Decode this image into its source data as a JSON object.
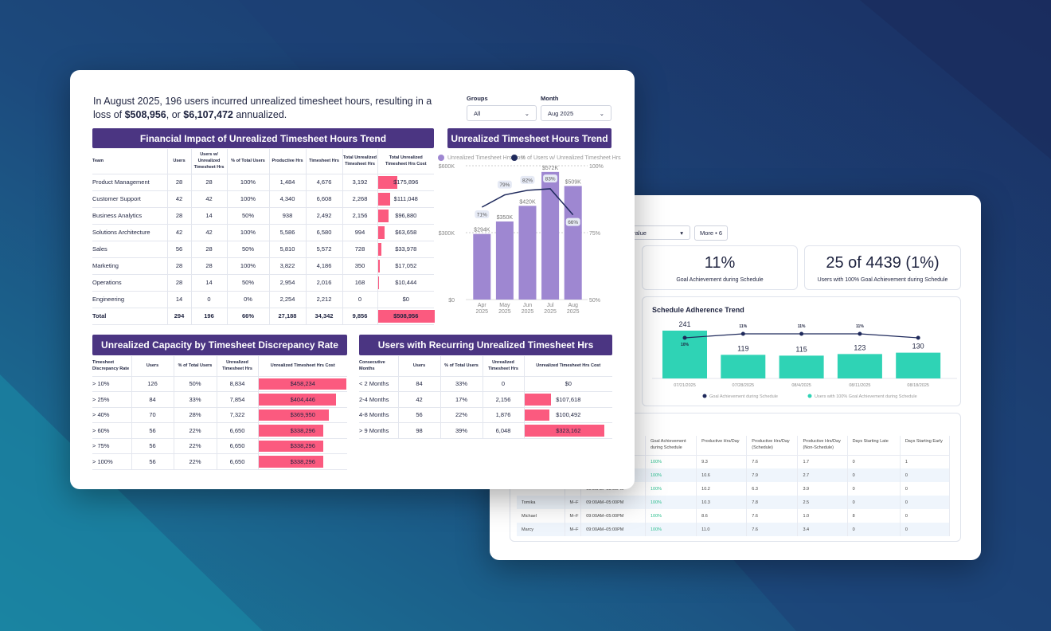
{
  "colors": {
    "brand_purple": "#4b3582",
    "bar_pink": "#fb5a7f",
    "chart_purple": "#9e87d1",
    "line_navy": "#1f2a5c",
    "teal": "#2fd3b5"
  },
  "front": {
    "summary": {
      "pre": "In August 2025, 196 users incurred unrealized timesheet hours, resulting in a loss of ",
      "loss": "$508,956",
      "mid": ", or ",
      "annual": "$6,107,472",
      "post": " annualized."
    },
    "filters": {
      "groups_label": "Groups",
      "groups_value": "All",
      "month_label": "Month",
      "month_value": "Aug 2025"
    },
    "financial": {
      "title": "Financial Impact of Unrealized Timesheet Hours Trend",
      "headers": [
        "Team",
        "Users",
        "Users w/ Unrealized Timesheet Hrs",
        "% of Total Users",
        "Productive Hrs",
        "Timesheet Hrs",
        "Total Unrealized Timesheet Hrs",
        "Total Unrealized Timesheet Hrs Cost"
      ],
      "rows": [
        [
          "Product Management",
          "28",
          "28",
          "100%",
          "1,484",
          "4,676",
          "3,192",
          "$175,896"
        ],
        [
          "Customer Support",
          "42",
          "42",
          "100%",
          "4,340",
          "6,608",
          "2,268",
          "$111,048"
        ],
        [
          "Business Analytics",
          "28",
          "14",
          "50%",
          "938",
          "2,492",
          "2,156",
          "$96,880"
        ],
        [
          "Solutions Architecture",
          "42",
          "42",
          "100%",
          "5,586",
          "6,580",
          "994",
          "$63,658"
        ],
        [
          "Sales",
          "56",
          "28",
          "50%",
          "5,810",
          "5,572",
          "728",
          "$33,978"
        ],
        [
          "Marketing",
          "28",
          "28",
          "100%",
          "3,822",
          "4,186",
          "350",
          "$17,052"
        ],
        [
          "Operations",
          "28",
          "14",
          "50%",
          "2,954",
          "2,016",
          "168",
          "$10,444"
        ],
        [
          "Engineering",
          "14",
          "0",
          "0%",
          "2,254",
          "2,212",
          "0",
          "$0"
        ]
      ],
      "cost_values": [
        175896,
        111048,
        96880,
        63658,
        33978,
        17052,
        10444,
        0
      ],
      "total": [
        "Total",
        "294",
        "196",
        "66%",
        "27,188",
        "34,342",
        "9,856",
        "$508,956"
      ],
      "total_value": 508956
    },
    "trend": {
      "title": "Unrealized Timesheet Hours Trend",
      "chart_data": {
        "type": "bar+line",
        "categories": [
          "Apr 2025",
          "May 2025",
          "Jun 2025",
          "Jul 2025",
          "Aug 2025"
        ],
        "series": [
          {
            "name": "Unrealized Timesheet Hrs Cost",
            "type": "bar",
            "values": [
              294000,
              350000,
              420000,
              572000,
              509000
            ],
            "labels": [
              "$294K",
              "$350K",
              "$420K",
              "$572K",
              "$509K"
            ],
            "color": "#9e87d1"
          },
          {
            "name": "% of Users w/ Unrealized Timesheet Hrs",
            "type": "line",
            "values": [
              71,
              79,
              82,
              83,
              66
            ],
            "labels": [
              "71%",
              "79%",
              "82%",
              "83%",
              "66%"
            ],
            "color": "#1f2a5c"
          }
        ],
        "y_left": {
          "ticks": [
            "$0",
            "$300K",
            "$600K"
          ],
          "ylim": [
            0,
            600000
          ]
        },
        "y_right": {
          "ticks": [
            "50%",
            "75%",
            "100%"
          ],
          "ylim": [
            50,
            100
          ]
        },
        "grid": "dashed horizontal",
        "legend": "top-left"
      }
    },
    "discrepancy": {
      "title": "Unrealized Capacity by Timesheet Discrepancy Rate",
      "headers": [
        "Timesheet Discrepancy Rate",
        "Users",
        "% of Total Users",
        "Unrealized Timesheet Hrs",
        "Unrealized Timesheet Hrs Cost"
      ],
      "rows": [
        [
          "> 10%",
          "126",
          "50%",
          "8,834",
          "$458,234"
        ],
        [
          "> 25%",
          "84",
          "33%",
          "7,854",
          "$404,446"
        ],
        [
          "> 40%",
          "70",
          "28%",
          "7,322",
          "$369,950"
        ],
        [
          "> 60%",
          "56",
          "22%",
          "6,650",
          "$338,296"
        ],
        [
          "> 75%",
          "56",
          "22%",
          "6,650",
          "$338,296"
        ],
        [
          "> 100%",
          "56",
          "22%",
          "6,650",
          "$338,296"
        ]
      ],
      "cost_values": [
        458234,
        404446,
        369950,
        338296,
        338296,
        338296
      ]
    },
    "recurring": {
      "title": "Users with Recurring Unrealized Timesheet Hrs",
      "headers": [
        "Consecutive Months",
        "Users",
        "% of Total Users",
        "Unrealized Timesheet Hrs",
        "Unrealized Timesheet Hrs Cost"
      ],
      "rows": [
        [
          "< 2 Months",
          "84",
          "33%",
          "0",
          "$0"
        ],
        [
          "2-4 Months",
          "42",
          "17%",
          "2,156",
          "$107,618"
        ],
        [
          "4-8 Months",
          "56",
          "22%",
          "1,876",
          "$100,492"
        ],
        [
          "> 9 Months",
          "98",
          "39%",
          "6,048",
          "$323,162"
        ]
      ],
      "cost_values": [
        0,
        107618,
        100492,
        323162
      ]
    }
  },
  "back": {
    "filter_label": "e",
    "filter_value": "value",
    "more_button": "More • 6",
    "kpis": [
      {
        "value": "11%",
        "label": "Goal Achievement during Schedule"
      },
      {
        "value": "25 of 4439 (1%)",
        "label": "Users with 100% Goal Achievement during Schedule"
      }
    ],
    "adherence": {
      "title": "Schedule Adherence Trend",
      "chart_data": {
        "type": "bar+line",
        "categories": [
          "07/21/2025",
          "07/28/2025",
          "08/4/2025",
          "08/11/2025",
          "08/18/2025"
        ],
        "series": [
          {
            "name": "Users with 100% Goal Achievement during Schedule",
            "type": "bar",
            "values": [
              241,
              119,
              115,
              123,
              130
            ],
            "color": "#2fd3b5"
          },
          {
            "name": "Goal Achievement during Schedule",
            "type": "line",
            "values": [
              10,
              11,
              11,
              11,
              10
            ],
            "labels": [
              "10%",
              "11%",
              "11%",
              "11%",
              ""
            ],
            "color": "#1f2a5c"
          }
        ],
        "legend": "bottom"
      }
    },
    "table": {
      "headers": [
        "",
        "",
        "",
        "Goal Achievement during Schedule",
        "Productive Hrs/Day",
        "Productive Hrs/Day (Schedule)",
        "Productive Hrs/Day (Non-Schedule)",
        "Days Starting Late",
        "Days Starting Early"
      ],
      "rows": [
        [
          "",
          "",
          "09:00AM–05:00PM",
          "100%",
          "9.3",
          "7.6",
          "1.7",
          "0",
          "1"
        ],
        [
          "",
          "",
          "09:00AM–05:00PM",
          "100%",
          "10.6",
          "7.9",
          "2.7",
          "0",
          "0"
        ],
        [
          "",
          "",
          "09:00AM–05:00PM",
          "100%",
          "10.2",
          "6.3",
          "3.9",
          "0",
          "0"
        ],
        [
          "Tomika",
          "M–F",
          "09:00AM–05:00PM",
          "100%",
          "10.3",
          "7.8",
          "2.5",
          "0",
          "0"
        ],
        [
          "Michael",
          "M–F",
          "09:00AM–05:00PM",
          "100%",
          "8.6",
          "7.6",
          "1.0",
          "8",
          "0"
        ],
        [
          "Marcy",
          "M–F",
          "09:00AM–05:00PM",
          "100%",
          "11.0",
          "7.6",
          "3.4",
          "0",
          "0"
        ]
      ]
    }
  }
}
